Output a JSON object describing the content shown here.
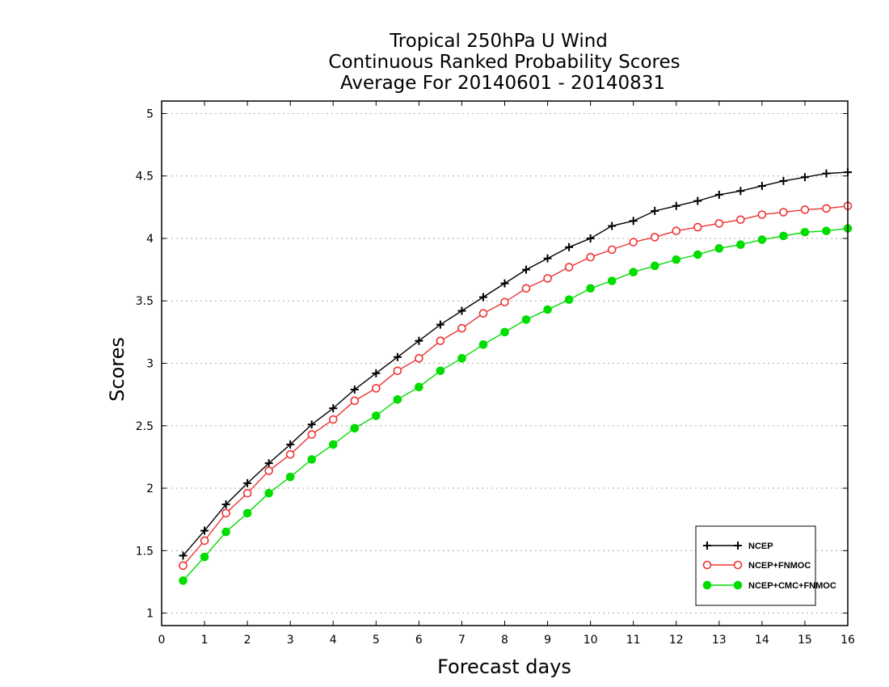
{
  "chart_data": {
    "type": "line",
    "title_lines": [
      "Tropical 250hPa U Wind",
      "Continuous Ranked Probability Scores",
      "Average For 20140601 - 20140831"
    ],
    "xlabel": "Forecast days",
    "ylabel": "Scores",
    "xlim": [
      0,
      16
    ],
    "ylim": [
      0.9,
      5.1
    ],
    "xticks": [
      "0",
      "1",
      "2",
      "3",
      "4",
      "5",
      "6",
      "7",
      "8",
      "9",
      "10",
      "11",
      "12",
      "13",
      "14",
      "15",
      "16"
    ],
    "yticks": [
      "1",
      "1.5",
      "2",
      "2.5",
      "3",
      "3.5",
      "4",
      "4.5",
      "5"
    ],
    "grid": "horizontal dotted",
    "legend_position": "bottom-right",
    "x": [
      0.5,
      1,
      1.5,
      2,
      2.5,
      3,
      3.5,
      4,
      4.5,
      5,
      5.5,
      6,
      6.5,
      7,
      7.5,
      8,
      8.5,
      9,
      9.5,
      10,
      10.5,
      11,
      11.5,
      12,
      12.5,
      13,
      13.5,
      14,
      14.5,
      15,
      15.5,
      16
    ],
    "series": [
      {
        "name": "NCEP",
        "color": "#000000",
        "marker": "plus",
        "values": [
          1.46,
          1.66,
          1.87,
          2.04,
          2.2,
          2.35,
          2.51,
          2.64,
          2.79,
          2.92,
          3.05,
          3.18,
          3.31,
          3.42,
          3.53,
          3.64,
          3.75,
          3.84,
          3.93,
          4.0,
          4.1,
          4.14,
          4.22,
          4.26,
          4.3,
          4.35,
          4.38,
          4.42,
          4.46,
          4.49,
          4.52,
          4.53
        ]
      },
      {
        "name": "NCEP+FNMOC",
        "color": "#ee3333",
        "marker": "open-circle",
        "values": [
          1.38,
          1.58,
          1.8,
          1.96,
          2.14,
          2.27,
          2.43,
          2.55,
          2.7,
          2.8,
          2.94,
          3.04,
          3.18,
          3.28,
          3.4,
          3.49,
          3.6,
          3.68,
          3.77,
          3.85,
          3.91,
          3.97,
          4.01,
          4.06,
          4.09,
          4.12,
          4.15,
          4.19,
          4.21,
          4.23,
          4.24,
          4.26
        ]
      },
      {
        "name": "NCEP+CMC+FNMOC",
        "color": "#00dd00",
        "marker": "filled-circle",
        "values": [
          1.26,
          1.45,
          1.65,
          1.8,
          1.96,
          2.09,
          2.23,
          2.35,
          2.48,
          2.58,
          2.71,
          2.81,
          2.94,
          3.04,
          3.15,
          3.25,
          3.35,
          3.43,
          3.51,
          3.6,
          3.66,
          3.73,
          3.78,
          3.83,
          3.87,
          3.92,
          3.95,
          3.99,
          4.02,
          4.05,
          4.06,
          4.08
        ]
      }
    ]
  }
}
